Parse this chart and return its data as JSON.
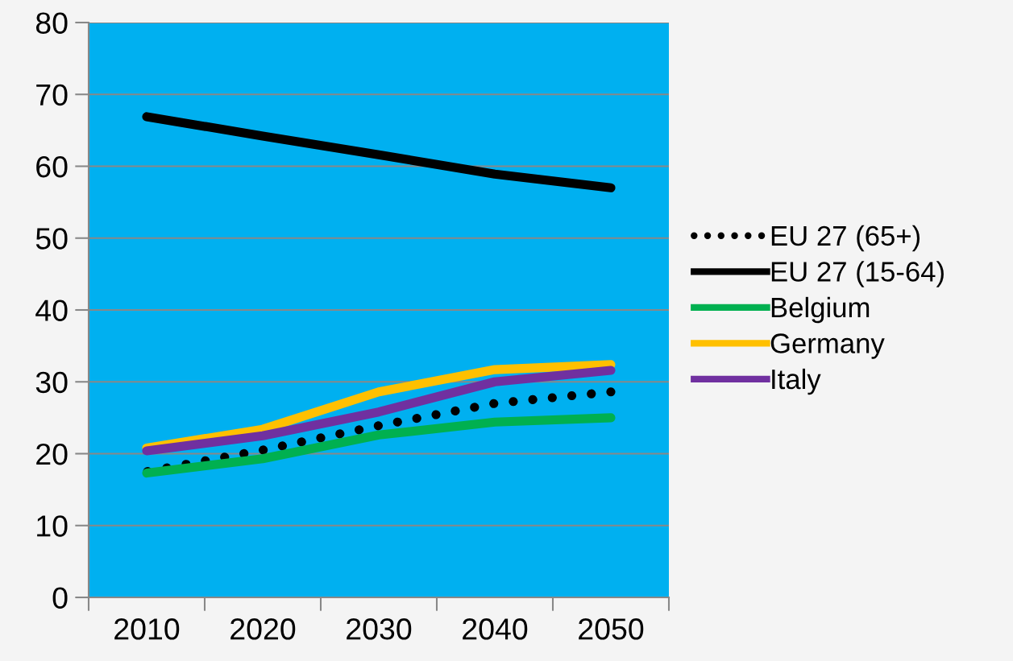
{
  "chart_data": {
    "type": "line",
    "categories": [
      "2010",
      "2020",
      "2030",
      "2040",
      "2050"
    ],
    "series": [
      {
        "name": "EU 27 (65+)",
        "color": "#000000",
        "line_style": "dotted",
        "values": [
          17.5,
          20.5,
          23.9,
          27.0,
          28.6
        ]
      },
      {
        "name": "EU 27 (15-64)",
        "color": "#000000",
        "values": [
          66.9,
          64.2,
          61.6,
          58.9,
          57.0
        ]
      },
      {
        "name": "Belgium",
        "color": "#00b050",
        "values": [
          17.3,
          19.3,
          22.6,
          24.4,
          25.0
        ]
      },
      {
        "name": "Germany",
        "color": "#ffc000",
        "values": [
          20.8,
          23.4,
          28.6,
          31.7,
          32.4
        ]
      },
      {
        "name": "Italy",
        "color": "#7030a0",
        "values": [
          20.4,
          22.5,
          25.8,
          30.0,
          31.6
        ]
      }
    ],
    "ylim": [
      0,
      80
    ],
    "yticks": [
      0,
      10,
      20,
      30,
      40,
      50,
      60,
      70,
      80
    ],
    "grid": "y",
    "legend": "right",
    "marker": "none",
    "line_style": "solid"
  }
}
